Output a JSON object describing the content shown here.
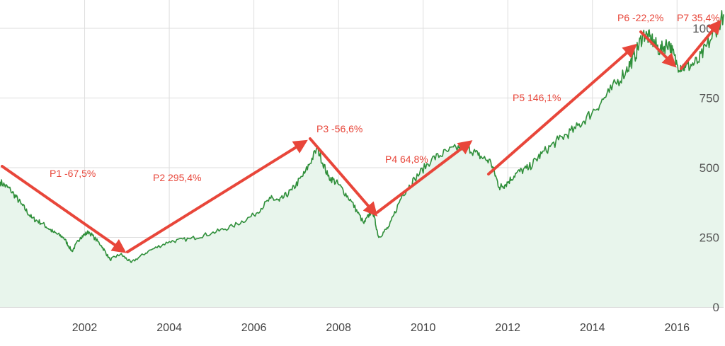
{
  "chart_data": {
    "type": "area",
    "grid": true,
    "x_range": [
      2000.0,
      2017.1
    ],
    "ylim": [
      0,
      1000
    ],
    "yticks": [
      0,
      250,
      500,
      750,
      1000
    ],
    "xticks": [
      "2002",
      "2004",
      "2006",
      "2008",
      "2010",
      "2012",
      "2014",
      "2016"
    ],
    "line_color": "#2f8f3a",
    "fill_color": "#e8f5ec",
    "annotation_color": "#e8463a",
    "series": [
      {
        "x": [
          2000.0,
          2000.25,
          2000.5,
          2000.75,
          2001.0,
          2001.25,
          2001.5,
          2001.7,
          2001.9,
          2002.1,
          2002.4,
          2002.6,
          2002.85,
          2003.1,
          2003.5,
          2004.0,
          2004.5,
          2005.0,
          2005.5,
          2006.0,
          2006.4,
          2006.6,
          2006.9,
          2007.2,
          2007.5,
          2007.75,
          2008.0,
          2008.3,
          2008.6,
          2008.8,
          2008.95,
          2009.2,
          2009.5,
          2009.8,
          2010.2,
          2010.6,
          2011.0,
          2011.3,
          2011.6,
          2011.8,
          2011.95,
          2012.2,
          2012.5,
          2012.8,
          2013.2,
          2013.6,
          2014.0,
          2014.4,
          2014.8,
          2015.0,
          2015.2,
          2015.4,
          2015.6,
          2015.8,
          2016.0,
          2016.2,
          2016.5,
          2016.8,
          2017.1
        ],
        "y": [
          450,
          420,
          370,
          320,
          300,
          270,
          250,
          200,
          250,
          270,
          220,
          170,
          190,
          160,
          200,
          235,
          245,
          265,
          290,
          330,
          390,
          380,
          420,
          480,
          570,
          470,
          440,
          380,
          300,
          350,
          250,
          290,
          400,
          460,
          530,
          560,
          580,
          545,
          520,
          430,
          440,
          480,
          500,
          550,
          600,
          640,
          700,
          770,
          850,
          900,
          980,
          960,
          920,
          950,
          870,
          860,
          880,
          960,
          1050
        ]
      }
    ],
    "annotations": [
      "P1 -67,5%",
      "P2 295,4%",
      "P3 -56,6%",
      "P4 64,8%",
      "P5 146,1%",
      "P6 -22,2%",
      "P7 35,4%"
    ]
  }
}
